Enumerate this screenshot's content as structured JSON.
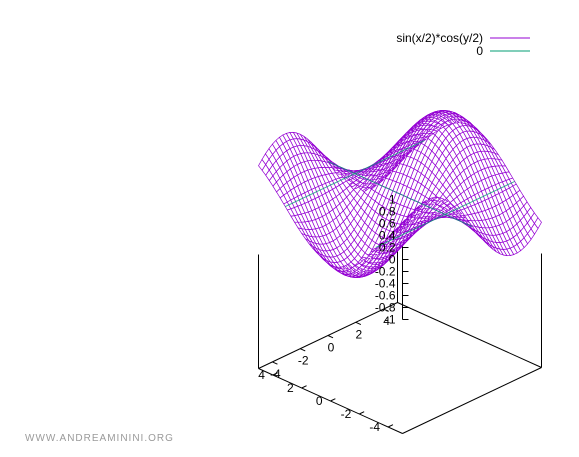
{
  "chart_data": {
    "type": "surface",
    "title": "",
    "xlabel": "",
    "ylabel": "",
    "zlabel": "",
    "x_range": [
      -5,
      5
    ],
    "y_range": [
      -5,
      5
    ],
    "z_range": [
      -1,
      1
    ],
    "x_ticks": [
      -4,
      -2,
      0,
      2,
      4
    ],
    "y_ticks": [
      -4,
      -2,
      0,
      2,
      4
    ],
    "z_ticks": [
      1,
      0.8,
      0.6,
      0.4,
      0.2,
      0,
      -0.2,
      -0.4,
      -0.6,
      -0.8,
      -1
    ],
    "z_tick_labels": [
      "1",
      "0.8",
      "0.6",
      "0.4",
      "0.2",
      "0",
      "-0.2",
      "-0.4",
      "-0.6",
      "-0.8",
      "-1"
    ],
    "x_tick_labels": [
      "-4",
      "-2",
      "0",
      "2",
      "4"
    ],
    "y_tick_labels": [
      "-4",
      "-2",
      "0",
      "2",
      "4"
    ],
    "grid_lines": 40,
    "legend_position": "top-right",
    "series": [
      {
        "name": "sin(x/2)*cos(y/2)",
        "color": "#9400D3",
        "kind": "mesh"
      },
      {
        "name": "0",
        "color": "#009E73",
        "kind": "plane-contour"
      }
    ]
  },
  "watermark": "WWW.ANDREAMININI.ORG"
}
